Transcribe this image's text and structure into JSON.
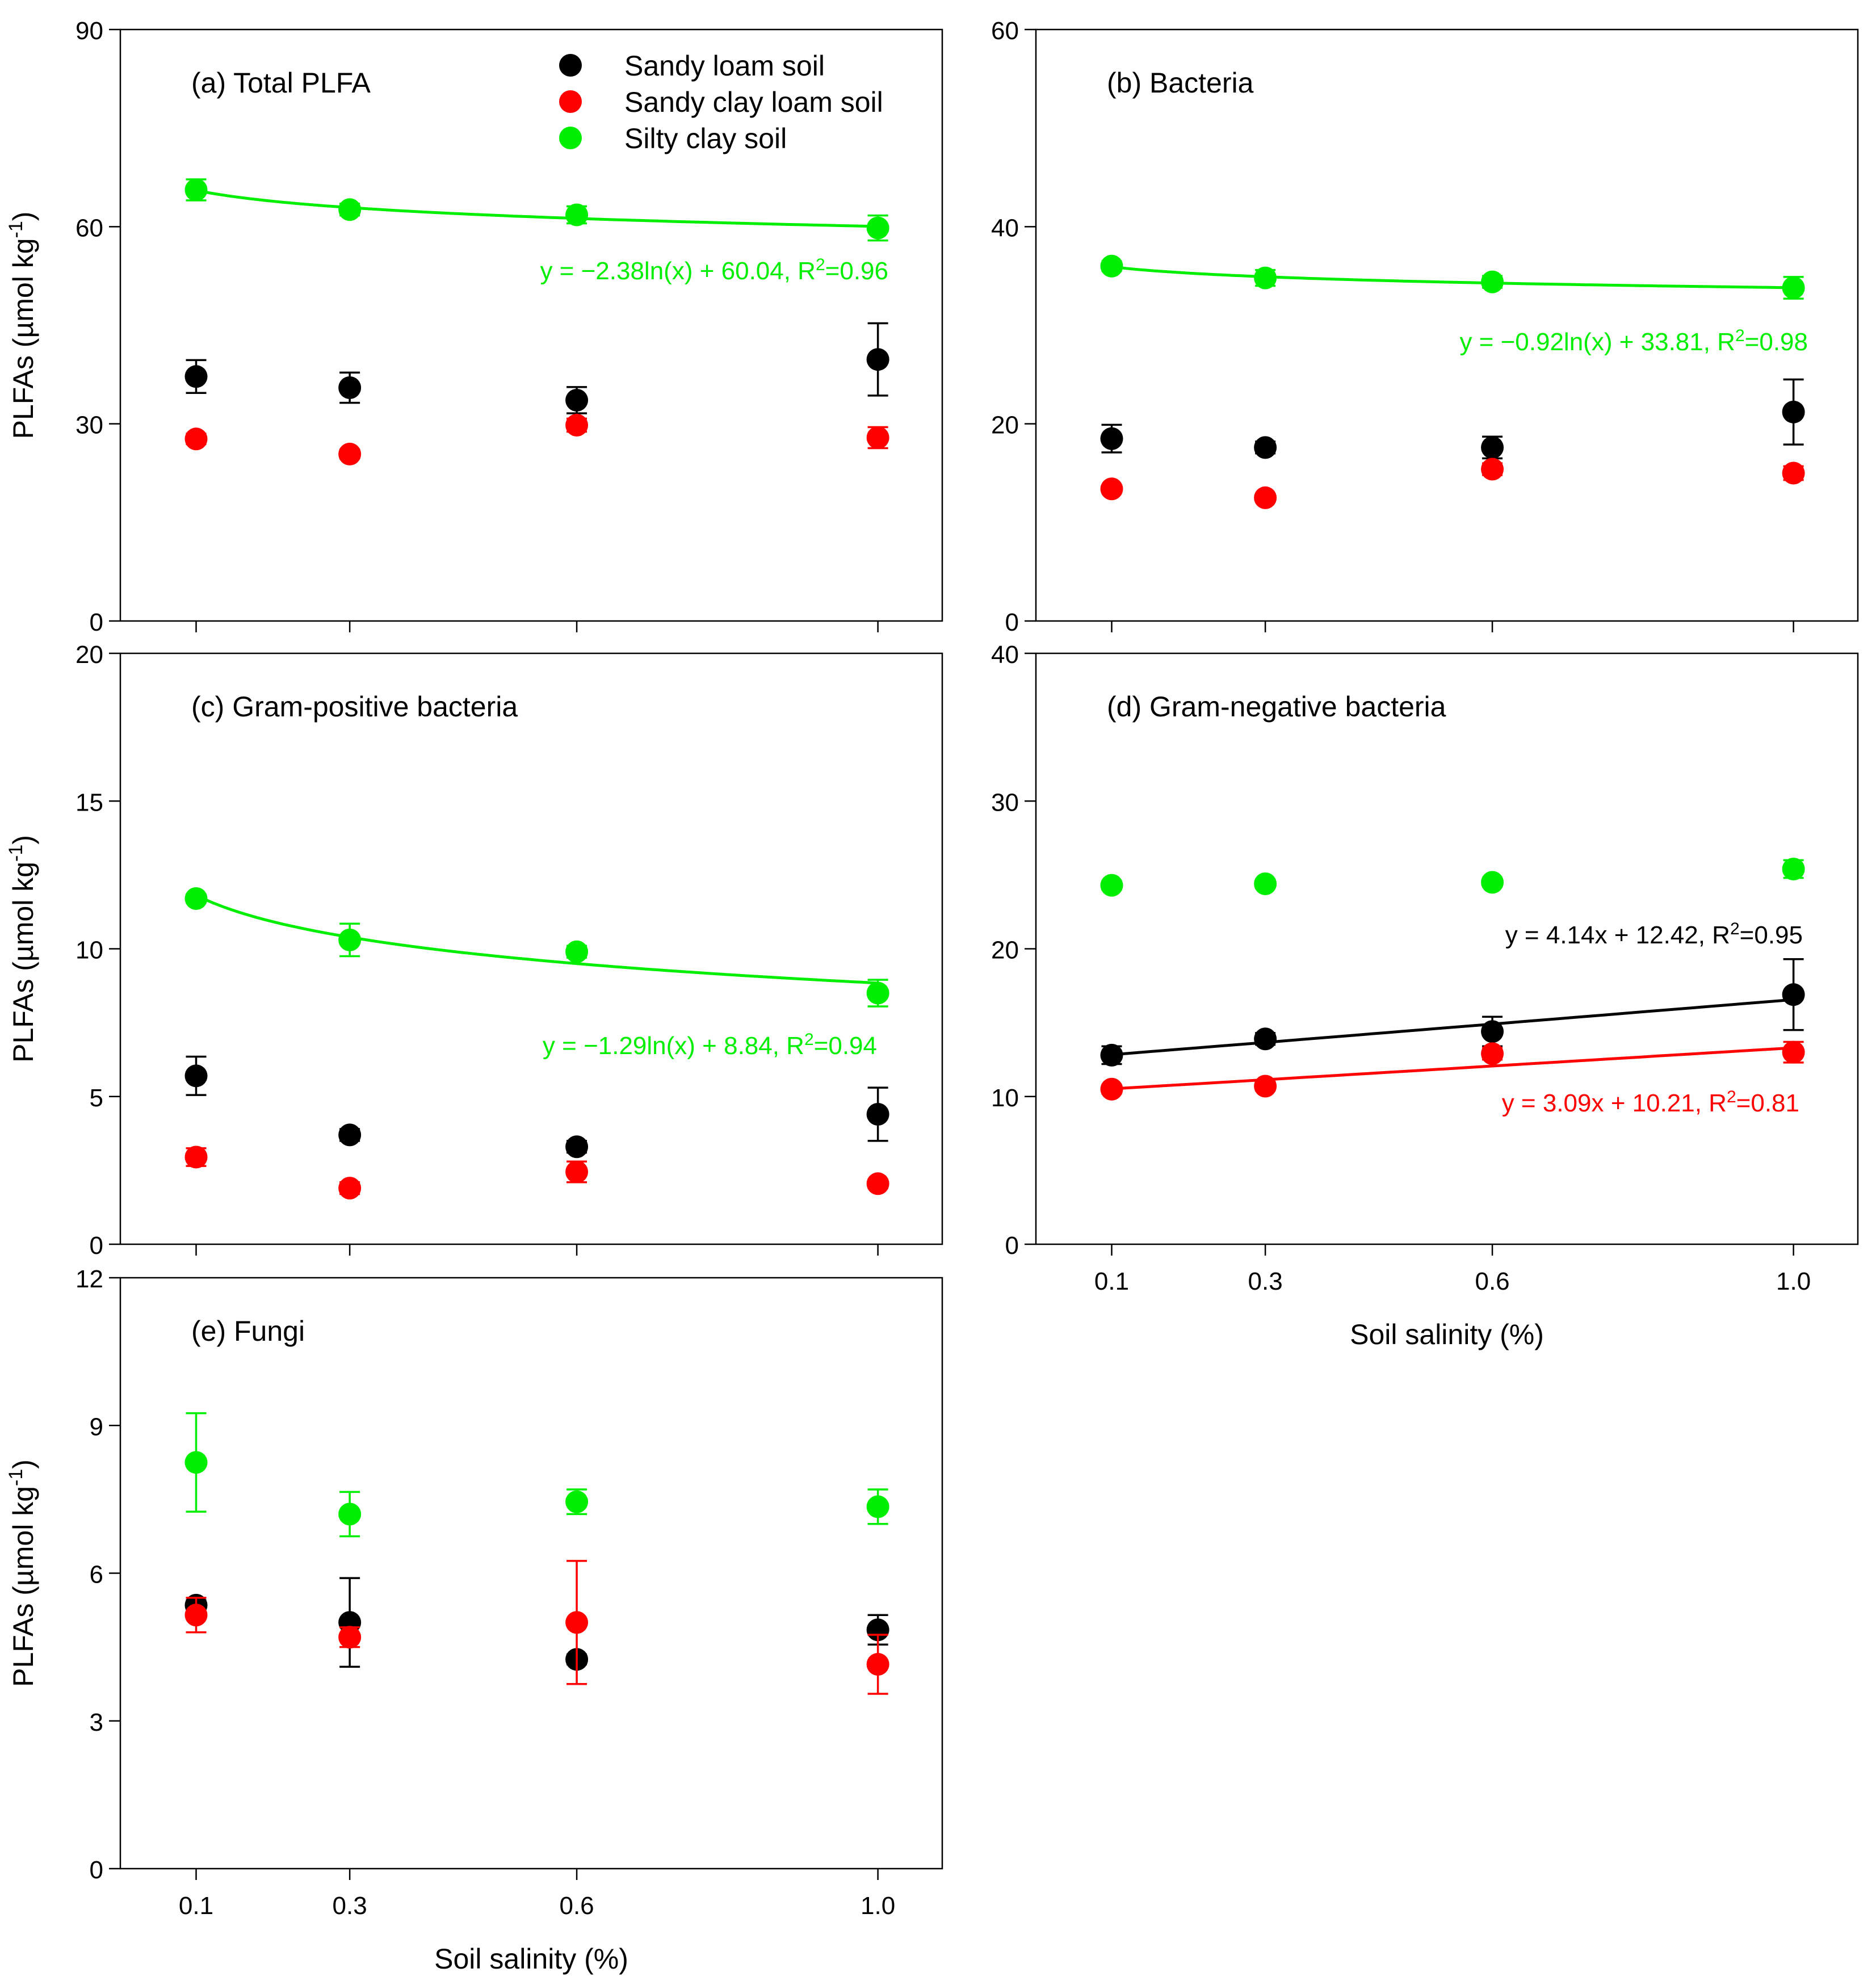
{
  "colors": {
    "sandy_loam": "#000000",
    "sandy_clay_loam": "#ff0000",
    "silty_clay": "#00ee00",
    "axis": "#000000"
  },
  "legend": [
    "Sandy loam soil",
    "Sandy clay loam soil",
    "Silty clay soil"
  ],
  "chart_data": [
    {
      "id": "a",
      "type": "scatter",
      "title": "(a) Total PLFA",
      "ylabel": "PLFAs (µmol kg",
      "ylabel_sup": "-1",
      "ylabel_close": ")",
      "xlabel": "",
      "x": [
        0.1,
        0.3,
        0.6,
        1.0
      ],
      "xtick_labels": [
        "0.1",
        "0.3",
        "0.6",
        "1.0"
      ],
      "show_xtick_labels": false,
      "ylim": [
        0,
        90
      ],
      "yticks": [
        "0",
        "30",
        "60",
        "90"
      ],
      "series": [
        {
          "name": "Sandy loam soil",
          "color": "#000000",
          "values": [
            37.2,
            35.5,
            33.6,
            39.8
          ],
          "errors": [
            2.5,
            2.3,
            2.0,
            5.5
          ]
        },
        {
          "name": "Sandy clay loam soil",
          "color": "#ff0000",
          "values": [
            27.7,
            25.4,
            29.8,
            27.9
          ],
          "errors": [
            0.8,
            0.7,
            1.0,
            1.6
          ]
        },
        {
          "name": "Silty clay soil",
          "color": "#00ee00",
          "values": [
            65.6,
            62.6,
            61.8,
            59.8
          ],
          "errors": [
            1.6,
            0.9,
            1.3,
            1.9
          ]
        }
      ],
      "fits": [
        {
          "kind": "log",
          "a": -2.38,
          "b": 60.04,
          "color": "#00ee00",
          "label": "y = −2.38ln(x) + 60.04, R",
          "label_sup": "2",
          "label_tail": "=0.96"
        }
      ]
    },
    {
      "id": "b",
      "type": "scatter",
      "title": "(b) Bacteria",
      "ylabel": "",
      "ylabel_sup": "",
      "ylabel_close": "",
      "xlabel": "",
      "x": [
        0.1,
        0.3,
        0.6,
        1.0
      ],
      "xtick_labels": [
        "0.1",
        "0.3",
        "0.6",
        "1.0"
      ],
      "show_xtick_labels": false,
      "ylim": [
        0,
        60
      ],
      "yticks": [
        "0",
        "20",
        "40",
        "60"
      ],
      "series": [
        {
          "name": "Sandy loam soil",
          "color": "#000000",
          "values": [
            18.5,
            17.6,
            17.6,
            21.2
          ],
          "errors": [
            1.4,
            0.6,
            1.1,
            3.3
          ]
        },
        {
          "name": "Sandy clay loam soil",
          "color": "#ff0000",
          "values": [
            13.4,
            12.5,
            15.4,
            15.0
          ],
          "errors": [
            0.4,
            0.4,
            0.6,
            0.7
          ]
        },
        {
          "name": "Silty clay soil",
          "color": "#00ee00",
          "values": [
            36.0,
            34.8,
            34.4,
            33.8
          ],
          "errors": [
            0.5,
            0.8,
            0.6,
            1.1
          ]
        }
      ],
      "fits": [
        {
          "kind": "log",
          "a": -0.92,
          "b": 33.81,
          "color": "#00ee00",
          "label": "y = −0.92ln(x) + 33.81, R",
          "label_sup": "2",
          "label_tail": "=0.98"
        }
      ]
    },
    {
      "id": "c",
      "type": "scatter",
      "title": "(c) Gram-positive bacteria",
      "ylabel": "PLFAs (µmol kg",
      "ylabel_sup": "-1",
      "ylabel_close": ")",
      "xlabel": "",
      "x": [
        0.1,
        0.3,
        0.6,
        1.0
      ],
      "xtick_labels": [
        "0.1",
        "0.3",
        "0.6",
        "1.0"
      ],
      "show_xtick_labels": false,
      "ylim": [
        0,
        20
      ],
      "yticks": [
        "0",
        "5",
        "10",
        "15",
        "20"
      ],
      "series": [
        {
          "name": "Sandy loam soil",
          "color": "#000000",
          "values": [
            5.7,
            3.7,
            3.3,
            4.4
          ],
          "errors": [
            0.65,
            0.2,
            0.2,
            0.9
          ]
        },
        {
          "name": "Sandy clay loam soil",
          "color": "#ff0000",
          "values": [
            2.95,
            1.9,
            2.45,
            2.05
          ],
          "errors": [
            0.3,
            0.2,
            0.35,
            0.15
          ]
        },
        {
          "name": "Silty clay soil",
          "color": "#00ee00",
          "values": [
            11.7,
            10.3,
            9.9,
            8.5
          ],
          "errors": [
            0.15,
            0.55,
            0.2,
            0.45
          ]
        }
      ],
      "fits": [
        {
          "kind": "log",
          "a": -1.29,
          "b": 8.84,
          "color": "#00ee00",
          "label": "y = −1.29ln(x) + 8.84, R",
          "label_sup": "2",
          "label_tail": "=0.94"
        }
      ]
    },
    {
      "id": "d",
      "type": "scatter",
      "title": "(d) Gram-negative bacteria",
      "ylabel": "",
      "ylabel_sup": "",
      "ylabel_close": "",
      "xlabel": "Soil salinity (%)",
      "x": [
        0.1,
        0.3,
        0.6,
        1.0
      ],
      "xtick_labels": [
        "0.1",
        "0.3",
        "0.6",
        "1.0"
      ],
      "show_xtick_labels": true,
      "ylim": [
        0,
        40
      ],
      "yticks": [
        "0",
        "10",
        "20",
        "30",
        "40"
      ],
      "series": [
        {
          "name": "Sandy loam soil",
          "color": "#000000",
          "values": [
            12.8,
            13.9,
            14.4,
            16.9
          ],
          "errors": [
            0.6,
            0.4,
            1.0,
            2.4
          ]
        },
        {
          "name": "Sandy clay loam soil",
          "color": "#ff0000",
          "values": [
            10.5,
            10.7,
            12.9,
            13.0
          ],
          "errors": [
            0.3,
            0.3,
            0.4,
            0.7
          ]
        },
        {
          "name": "Silty clay soil",
          "color": "#00ee00",
          "values": [
            24.3,
            24.4,
            24.5,
            25.4
          ],
          "errors": [
            0.3,
            0.3,
            0.3,
            0.6
          ]
        }
      ],
      "fits": [
        {
          "kind": "linear",
          "a": 4.14,
          "b": 12.42,
          "color": "#000000",
          "label": "y = 4.14x + 12.42, R",
          "label_sup": "2",
          "label_tail": "=0.95"
        },
        {
          "kind": "linear",
          "a": 3.09,
          "b": 10.21,
          "color": "#ff0000",
          "label": "y = 3.09x + 10.21, R",
          "label_sup": "2",
          "label_tail": "=0.81"
        }
      ]
    },
    {
      "id": "e",
      "type": "scatter",
      "title": "(e) Fungi",
      "ylabel": "PLFAs (µmol kg",
      "ylabel_sup": "-1",
      "ylabel_close": ")",
      "xlabel": "Soil salinity (%)",
      "x": [
        0.1,
        0.3,
        0.6,
        1.0
      ],
      "xtick_labels": [
        "0.1",
        "0.3",
        "0.6",
        "1.0"
      ],
      "show_xtick_labels": true,
      "ylim": [
        0,
        12
      ],
      "yticks": [
        "0",
        "3",
        "6",
        "9",
        "12"
      ],
      "series": [
        {
          "name": "Sandy loam soil",
          "color": "#000000",
          "values": [
            5.35,
            5.0,
            4.25,
            4.85
          ],
          "errors": [
            0.1,
            0.9,
            0.1,
            0.3
          ]
        },
        {
          "name": "Sandy clay loam soil",
          "color": "#ff0000",
          "values": [
            5.15,
            4.7,
            5.0,
            4.15
          ],
          "errors": [
            0.35,
            0.2,
            1.25,
            0.6
          ]
        },
        {
          "name": "Silty clay soil",
          "color": "#00ee00",
          "values": [
            8.25,
            7.2,
            7.45,
            7.35
          ],
          "errors": [
            1.0,
            0.45,
            0.25,
            0.35
          ]
        }
      ],
      "fits": []
    }
  ]
}
